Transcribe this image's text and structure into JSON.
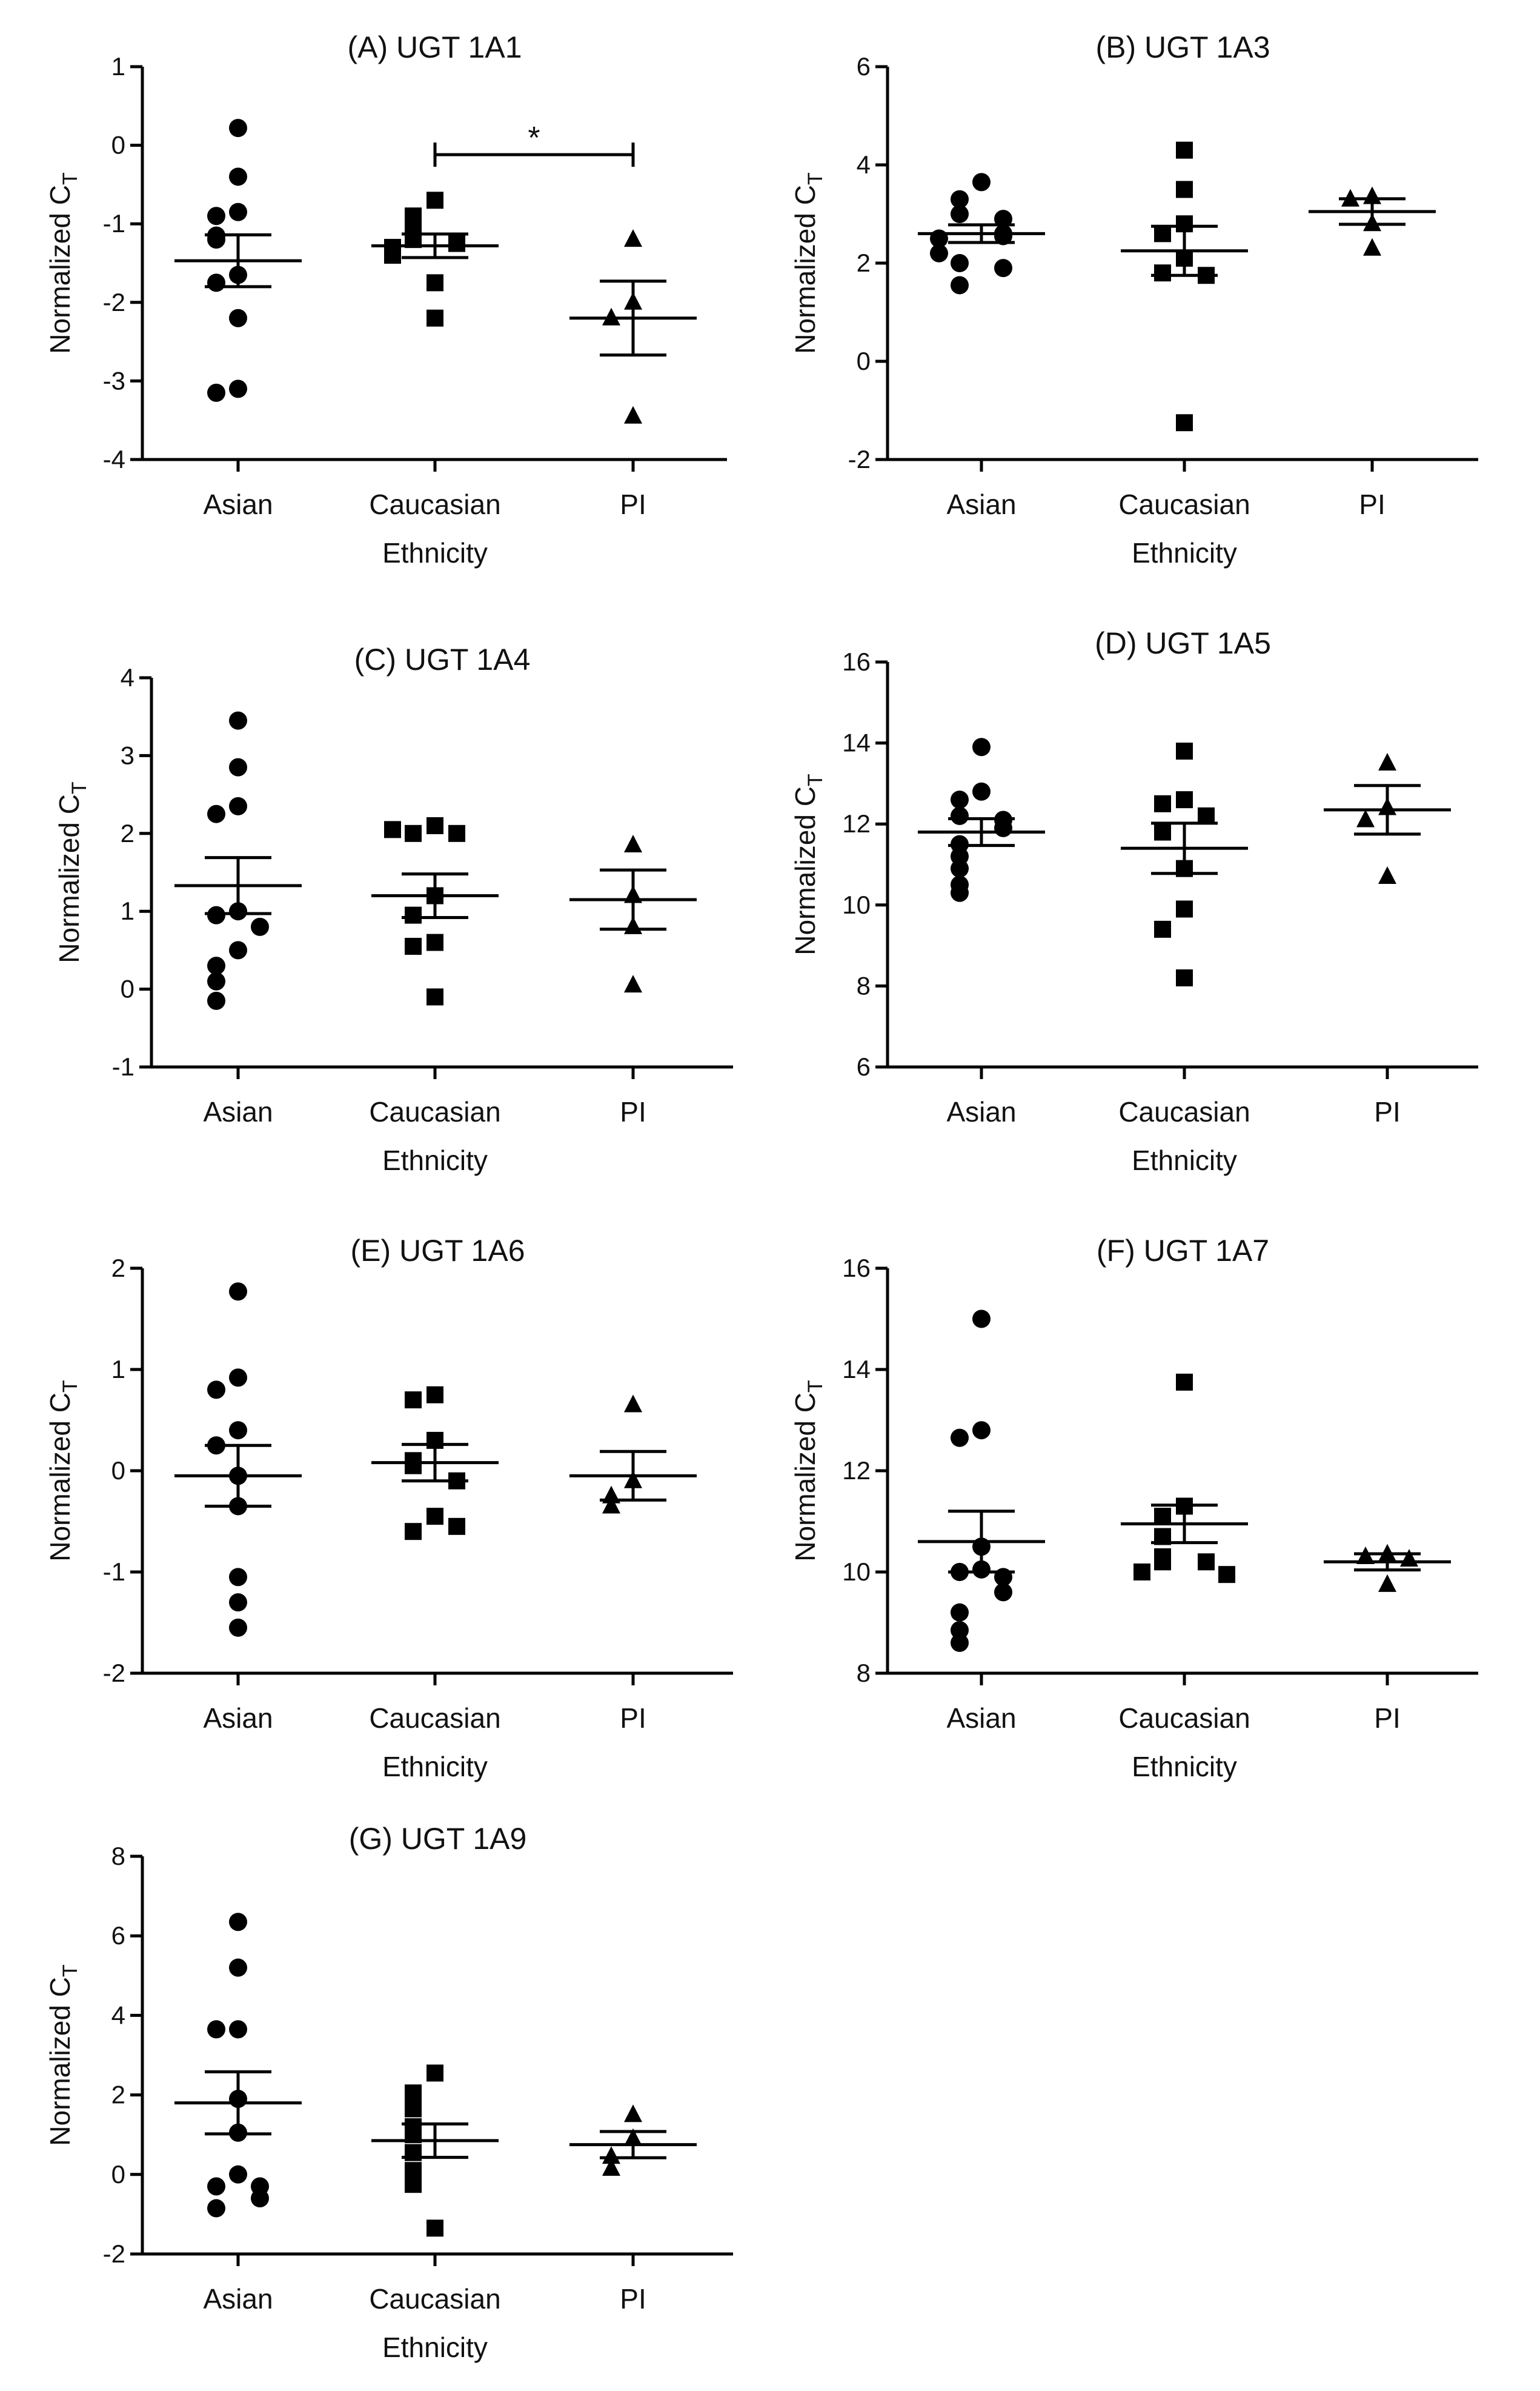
{
  "figure": {
    "description_note": "Seven dot-plot panels of normalized CT by ethnicity",
    "mark_color": "#000000"
  },
  "chart_data": [
    {
      "type": "scatter",
      "title": "(A) UGT 1A1",
      "xlabel": "Ethnicity",
      "ylabel_main": "Normalized C",
      "ylabel_sub": "T",
      "ylim": [
        -4,
        1
      ],
      "yticks": [
        1,
        0,
        -1,
        -2,
        -3,
        -4
      ],
      "categories": [
        "Asian",
        "Caucasian",
        "PI"
      ],
      "markers": [
        "circle",
        "square",
        "triangle"
      ],
      "points": [
        [
          0.22,
          -0.4,
          -0.85,
          -0.9,
          -1.15,
          -1.2,
          -1.65,
          -1.75,
          -2.2,
          -3.1,
          -3.15
        ],
        [
          -0.7,
          -0.9,
          -1.05,
          -1.2,
          -1.25,
          -1.3,
          -1.4,
          -1.75,
          -2.2
        ],
        [
          -1.2,
          -2.0,
          -2.2,
          -3.45
        ]
      ],
      "mean": [
        -1.47,
        -1.28,
        -2.2
      ],
      "sem": [
        0.33,
        0.15,
        0.47
      ],
      "significance": {
        "from": 1,
        "to": 2,
        "label": "*",
        "y": -0.12
      }
    },
    {
      "type": "scatter",
      "title": "(B) UGT 1A3",
      "xlabel": "Ethnicity",
      "ylabel_main": "Normalized C",
      "ylabel_sub": "T",
      "ylim": [
        -2,
        6
      ],
      "yticks": [
        6,
        4,
        2,
        0,
        -2
      ],
      "categories": [
        "Asian",
        "Caucasian",
        "PI"
      ],
      "markers": [
        "circle",
        "square",
        "triangle"
      ],
      "points": [
        [
          3.65,
          3.3,
          3.0,
          2.9,
          2.6,
          2.55,
          2.5,
          2.2,
          2.0,
          1.9,
          1.55
        ],
        [
          4.3,
          3.5,
          2.8,
          2.6,
          2.1,
          1.8,
          1.75,
          -1.25
        ],
        [
          3.35,
          3.3,
          2.8,
          2.3
        ]
      ],
      "mean": [
        2.6,
        2.25,
        3.05
      ],
      "sem": [
        0.18,
        0.5,
        0.26
      ]
    },
    {
      "type": "scatter",
      "title": "(C) UGT 1A4",
      "xlabel": "Ethnicity",
      "ylabel_main": "Normalized C",
      "ylabel_sub": "T",
      "ylim": [
        -1,
        4
      ],
      "yticks": [
        4,
        3,
        2,
        1,
        0,
        -1
      ],
      "categories": [
        "Asian",
        "Caucasian",
        "PI"
      ],
      "markers": [
        "circle",
        "square",
        "triangle"
      ],
      "points": [
        [
          3.45,
          2.85,
          2.35,
          2.25,
          1.0,
          0.95,
          0.8,
          0.5,
          0.3,
          0.1,
          -0.15
        ],
        [
          2.1,
          2.0,
          2.0,
          2.05,
          1.2,
          0.95,
          0.6,
          0.55,
          -0.1
        ],
        [
          1.85,
          1.2,
          0.8,
          0.05
        ]
      ],
      "mean": [
        1.33,
        1.2,
        1.15
      ],
      "sem": [
        0.36,
        0.28,
        0.38
      ]
    },
    {
      "type": "scatter",
      "title": "(D) UGT 1A5",
      "xlabel": "Ethnicity",
      "ylabel_main": "Normalized C",
      "ylabel_sub": "T",
      "ylim": [
        6,
        16
      ],
      "yticks": [
        16,
        14,
        12,
        10,
        8,
        6
      ],
      "categories": [
        "Asian",
        "Caucasian",
        "PI"
      ],
      "markers": [
        "circle",
        "square",
        "triangle"
      ],
      "points": [
        [
          13.9,
          12.8,
          12.6,
          12.2,
          12.1,
          11.9,
          11.5,
          11.2,
          10.9,
          10.5,
          10.3
        ],
        [
          13.8,
          12.6,
          12.5,
          12.2,
          11.8,
          10.9,
          9.9,
          9.4,
          8.2
        ],
        [
          13.5,
          12.4,
          12.1,
          10.7
        ]
      ],
      "mean": [
        11.8,
        11.4,
        12.35
      ],
      "sem": [
        0.33,
        0.62,
        0.6
      ]
    },
    {
      "type": "scatter",
      "title": "(E) UGT 1A6",
      "xlabel": "Ethnicity",
      "ylabel_main": "Normalized C",
      "ylabel_sub": "T",
      "ylim": [
        -2,
        2
      ],
      "yticks": [
        2,
        1,
        0,
        -1,
        -2
      ],
      "categories": [
        "Asian",
        "Caucasian",
        "PI"
      ],
      "markers": [
        "circle",
        "square",
        "triangle"
      ],
      "points": [
        [
          1.77,
          0.92,
          0.8,
          0.4,
          0.25,
          -0.05,
          -0.35,
          -1.05,
          -1.3,
          -1.55
        ],
        [
          0.75,
          0.7,
          0.3,
          0.1,
          0.05,
          -0.1,
          -0.45,
          -0.6,
          -0.55
        ],
        [
          0.65,
          -0.1,
          -0.25,
          -0.35
        ]
      ],
      "mean": [
        -0.05,
        0.08,
        -0.05
      ],
      "sem": [
        0.3,
        0.18,
        0.24
      ]
    },
    {
      "type": "scatter",
      "title": "(F) UGT 1A7",
      "xlabel": "Ethnicity",
      "ylabel_main": "Normalized C",
      "ylabel_sub": "T",
      "ylim": [
        8,
        16
      ],
      "yticks": [
        16,
        14,
        12,
        10,
        8
      ],
      "categories": [
        "Asian",
        "Caucasian",
        "PI"
      ],
      "markers": [
        "circle",
        "square",
        "triangle"
      ],
      "points": [
        [
          15.0,
          12.8,
          12.65,
          10.5,
          10.05,
          10.0,
          9.9,
          9.6,
          9.2,
          8.85,
          8.6
        ],
        [
          13.75,
          11.3,
          11.1,
          10.7,
          10.3,
          10.2,
          10.2,
          10.0,
          9.95
        ],
        [
          10.35,
          10.3,
          10.25,
          9.75
        ]
      ],
      "mean": [
        10.6,
        10.95,
        10.2
      ],
      "sem": [
        0.6,
        0.37,
        0.16
      ]
    },
    {
      "type": "scatter",
      "title": "(G) UGT 1A9",
      "xlabel": "Ethnicity",
      "ylabel_main": "Normalized C",
      "ylabel_sub": "T",
      "ylim": [
        -2,
        8
      ],
      "yticks": [
        8,
        6,
        4,
        2,
        0,
        -2
      ],
      "categories": [
        "Asian",
        "Caucasian",
        "PI"
      ],
      "markers": [
        "circle",
        "square",
        "triangle"
      ],
      "points": [
        [
          6.35,
          5.2,
          3.65,
          3.65,
          1.9,
          1.05,
          0.0,
          -0.3,
          -0.3,
          -0.6,
          -0.85
        ],
        [
          2.55,
          2.05,
          1.65,
          1.2,
          1.0,
          0.55,
          0.1,
          -0.25,
          -1.35
        ],
        [
          1.5,
          0.9,
          0.45,
          0.15
        ]
      ],
      "mean": [
        1.8,
        0.85,
        0.75
      ],
      "sem": [
        0.78,
        0.42,
        0.33
      ]
    }
  ]
}
